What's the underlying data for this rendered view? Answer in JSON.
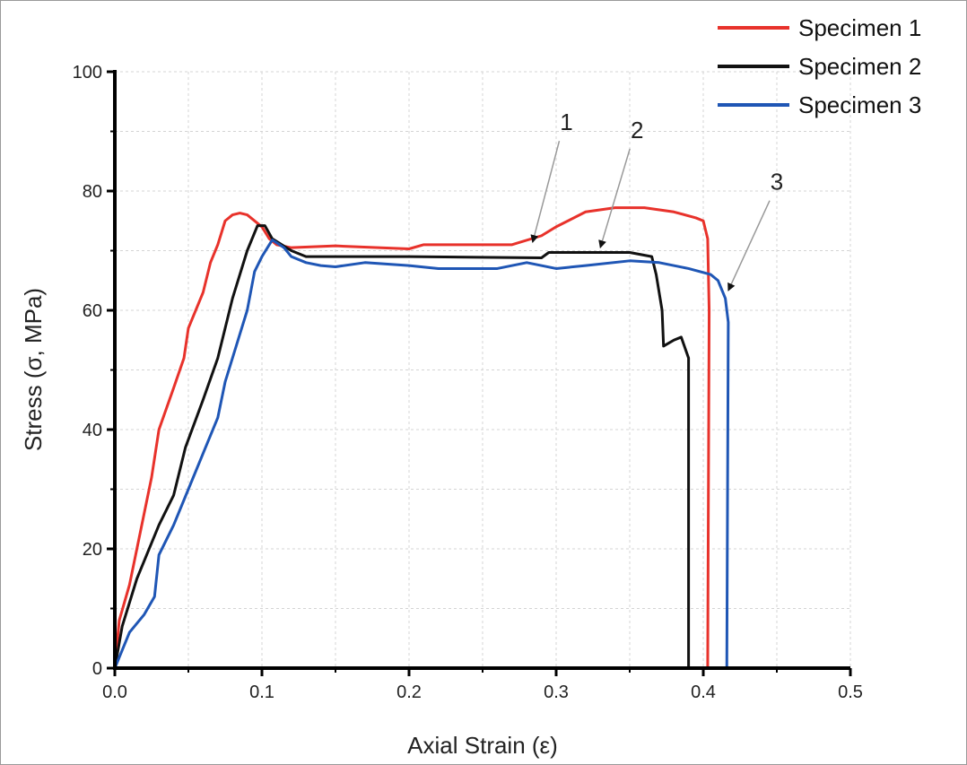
{
  "chart_data": {
    "type": "line",
    "title": "",
    "xlabel": "Axial Strain  (ε)",
    "ylabel": "Stress (σ, MPa)",
    "xlim": [
      0,
      0.5
    ],
    "ylim": [
      0,
      100
    ],
    "xticks": [
      0,
      0.1,
      0.2,
      0.3,
      0.4,
      0.5
    ],
    "xtick_labels": [
      "0.0",
      "0.1",
      "0.2",
      "0.3",
      "0.4",
      "0.5"
    ],
    "yticks": [
      0,
      20,
      40,
      60,
      80,
      100
    ],
    "ytick_labels": [
      "0",
      "20",
      "40",
      "60",
      "80",
      "100"
    ],
    "grid": true,
    "legend_position": "top-right",
    "series": [
      {
        "name": "Specimen 1",
        "color": "#e8322b",
        "points": [
          [
            0,
            0
          ],
          [
            0.003,
            8
          ],
          [
            0.01,
            14
          ],
          [
            0.02,
            26
          ],
          [
            0.025,
            32
          ],
          [
            0.03,
            40
          ],
          [
            0.04,
            47
          ],
          [
            0.047,
            52
          ],
          [
            0.05,
            57
          ],
          [
            0.06,
            63
          ],
          [
            0.065,
            68
          ],
          [
            0.07,
            71
          ],
          [
            0.075,
            75
          ],
          [
            0.08,
            76
          ],
          [
            0.085,
            76.3
          ],
          [
            0.09,
            76
          ],
          [
            0.1,
            74
          ],
          [
            0.105,
            72
          ],
          [
            0.11,
            71
          ],
          [
            0.12,
            70.5
          ],
          [
            0.15,
            70.8
          ],
          [
            0.2,
            70.3
          ],
          [
            0.21,
            71
          ],
          [
            0.27,
            71
          ],
          [
            0.29,
            72.5
          ],
          [
            0.3,
            74
          ],
          [
            0.32,
            76.5
          ],
          [
            0.34,
            77.2
          ],
          [
            0.36,
            77.2
          ],
          [
            0.38,
            76.5
          ],
          [
            0.395,
            75.5
          ],
          [
            0.4,
            75
          ],
          [
            0.403,
            72
          ],
          [
            0.404,
            60
          ],
          [
            0.403,
            0
          ]
        ]
      },
      {
        "name": "Specimen 2",
        "color": "#111111",
        "points": [
          [
            0,
            0
          ],
          [
            0.005,
            7
          ],
          [
            0.015,
            15
          ],
          [
            0.02,
            18
          ],
          [
            0.03,
            24
          ],
          [
            0.04,
            29
          ],
          [
            0.048,
            37
          ],
          [
            0.06,
            45
          ],
          [
            0.07,
            52
          ],
          [
            0.08,
            62
          ],
          [
            0.09,
            70
          ],
          [
            0.097,
            74.2
          ],
          [
            0.102,
            74.2
          ],
          [
            0.107,
            72
          ],
          [
            0.12,
            70
          ],
          [
            0.13,
            69
          ],
          [
            0.2,
            69
          ],
          [
            0.29,
            68.8
          ],
          [
            0.295,
            69.7
          ],
          [
            0.35,
            69.7
          ],
          [
            0.365,
            69
          ],
          [
            0.368,
            66
          ],
          [
            0.372,
            60
          ],
          [
            0.373,
            54
          ],
          [
            0.38,
            55
          ],
          [
            0.385,
            55.5
          ],
          [
            0.39,
            52
          ],
          [
            0.39,
            0
          ]
        ]
      },
      {
        "name": "Specimen 3",
        "color": "#1f56b5",
        "points": [
          [
            0,
            0
          ],
          [
            0.01,
            6
          ],
          [
            0.02,
            9
          ],
          [
            0.027,
            12
          ],
          [
            0.03,
            19
          ],
          [
            0.04,
            24
          ],
          [
            0.05,
            30
          ],
          [
            0.06,
            36
          ],
          [
            0.07,
            42
          ],
          [
            0.075,
            48
          ],
          [
            0.08,
            52
          ],
          [
            0.085,
            56
          ],
          [
            0.09,
            60
          ],
          [
            0.095,
            66.5
          ],
          [
            0.1,
            69
          ],
          [
            0.107,
            71.8
          ],
          [
            0.115,
            70.5
          ],
          [
            0.12,
            69
          ],
          [
            0.13,
            68
          ],
          [
            0.14,
            67.5
          ],
          [
            0.15,
            67.3
          ],
          [
            0.17,
            68
          ],
          [
            0.2,
            67.5
          ],
          [
            0.22,
            67
          ],
          [
            0.26,
            67
          ],
          [
            0.28,
            68
          ],
          [
            0.3,
            67
          ],
          [
            0.32,
            67.5
          ],
          [
            0.35,
            68.3
          ],
          [
            0.37,
            68
          ],
          [
            0.39,
            67
          ],
          [
            0.405,
            66
          ],
          [
            0.41,
            65
          ],
          [
            0.415,
            62
          ],
          [
            0.417,
            58
          ],
          [
            0.416,
            0
          ]
        ]
      }
    ],
    "annotations": [
      {
        "text": "1",
        "label_at": [
          0.307,
          90.2
        ],
        "arrow_to": [
          0.284,
          71.4
        ]
      },
      {
        "text": "2",
        "label_at": [
          0.355,
          88.9
        ],
        "arrow_to": [
          0.33,
          70.5
        ]
      },
      {
        "text": "3",
        "label_at": [
          0.45,
          80.2
        ],
        "arrow_to": [
          0.417,
          63.3
        ]
      }
    ]
  }
}
